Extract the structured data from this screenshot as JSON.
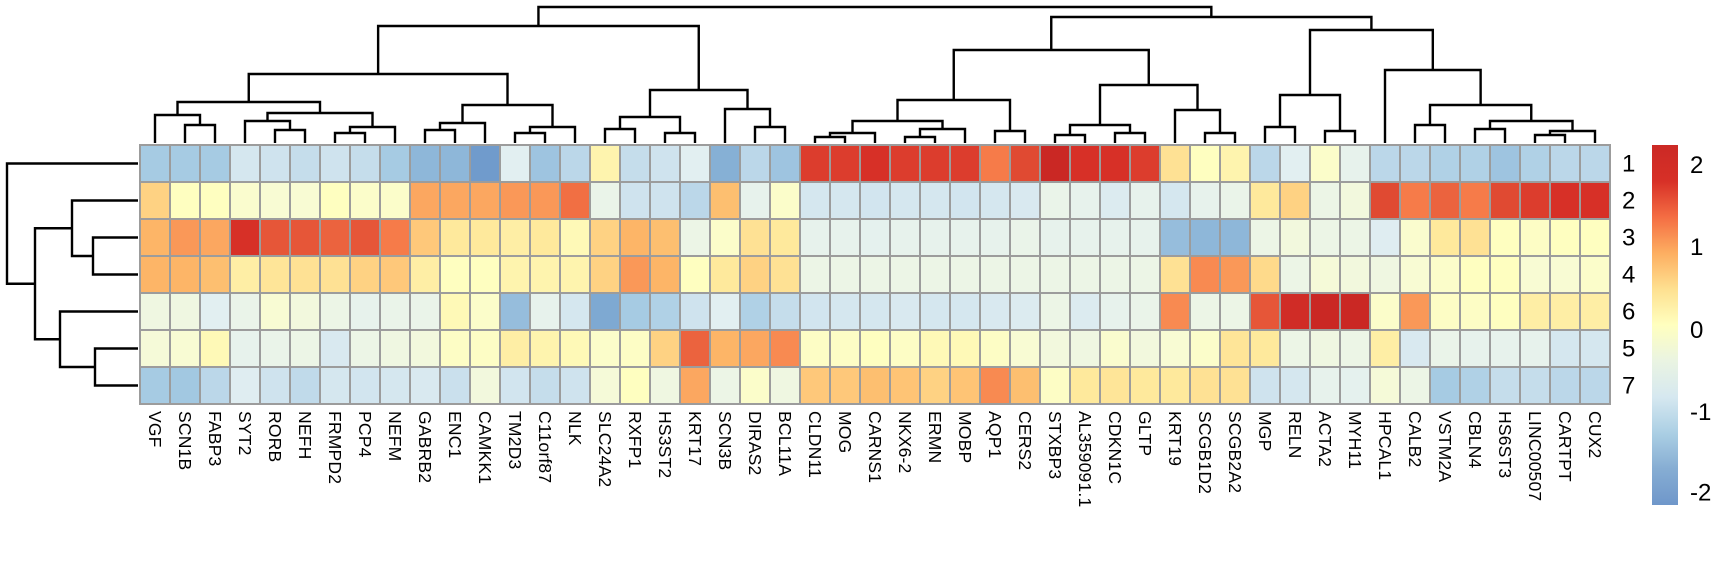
{
  "chart_data": {
    "type": "heatmap",
    "title": "",
    "description": "Hierarchically clustered gene-expression heatmap (z-scores), 7 cluster rows by 49 genes, with row and column dendrograms and a color key",
    "columns": [
      "VGF",
      "SCN1B",
      "FABP3",
      "SYT2",
      "RORB",
      "NEFH",
      "FRMPD2",
      "PCP4",
      "NEFM",
      "GABRB2",
      "ENC1",
      "CAMKK1",
      "TM2D3",
      "C11orf87",
      "NLK",
      "SLC24A2",
      "RXFP1",
      "HS3ST2",
      "KRT17",
      "SCN3B",
      "DIRAS2",
      "BCL11A",
      "CLDN11",
      "MOG",
      "CARNS1",
      "NKX6-2",
      "ERMN",
      "MOBP",
      "AQP1",
      "CERS2",
      "STXBP3",
      "AL359091.1",
      "CDKN1C",
      "GLTP",
      "KRT19",
      "SCGB1D2",
      "SCGB2A2",
      "MGP",
      "RELN",
      "ACTA2",
      "MYH11",
      "HPCAL1",
      "CALB2",
      "VSTM2A",
      "CBLN4",
      "HS6ST3",
      "LINC00507",
      "CARTPT",
      "CUX2"
    ],
    "rows": [
      "1",
      "2",
      "3",
      "4",
      "6",
      "5",
      "7"
    ],
    "values": [
      [
        -1.0,
        -1.0,
        -1.0,
        -0.5,
        -0.6,
        -0.7,
        -0.6,
        -0.7,
        -1.0,
        -1.3,
        -1.3,
        -1.7,
        -0.3,
        -1.1,
        -0.8,
        0.4,
        -0.7,
        -0.6,
        -0.3,
        -1.4,
        -0.8,
        -1.1,
        2.0,
        2.0,
        2.1,
        2.0,
        2.0,
        2.0,
        1.5,
        1.9,
        2.3,
        2.1,
        2.1,
        2.0,
        0.6,
        0.3,
        0.4,
        -0.8,
        -0.3,
        0.2,
        -0.2,
        -0.8,
        -0.8,
        -0.9,
        -0.9,
        -1.1,
        -0.9,
        -0.8,
        -0.8
      ],
      [
        0.8,
        0.3,
        0.3,
        0.15,
        0.1,
        0.1,
        0.3,
        0.2,
        0.2,
        1.2,
        1.2,
        1.2,
        1.3,
        1.3,
        1.6,
        -0.15,
        -0.6,
        -0.6,
        -0.8,
        1.0,
        -0.2,
        0.2,
        -0.5,
        -0.5,
        -0.55,
        -0.5,
        -0.5,
        -0.55,
        -0.5,
        -0.45,
        -0.15,
        -0.2,
        -0.4,
        -0.2,
        -0.5,
        -0.2,
        -0.15,
        0.5,
        0.8,
        -0.1,
        0.0,
        1.9,
        1.5,
        1.7,
        1.5,
        1.9,
        2.0,
        2.1,
        2.1
      ],
      [
        1.1,
        1.3,
        1.2,
        2.1,
        1.8,
        1.8,
        1.7,
        1.8,
        1.5,
        0.9,
        0.5,
        0.5,
        0.45,
        0.5,
        0.35,
        0.8,
        1.1,
        1.0,
        -0.1,
        0.2,
        0.6,
        0.5,
        -0.2,
        -0.2,
        -0.25,
        -0.2,
        -0.2,
        -0.2,
        -0.2,
        -0.15,
        -0.2,
        -0.2,
        -0.2,
        -0.2,
        -1.2,
        -1.3,
        -1.3,
        -0.1,
        0.0,
        -0.1,
        -0.1,
        -0.35,
        0.15,
        0.5,
        0.6,
        0.3,
        0.25,
        0.3,
        0.3
      ],
      [
        1.1,
        1.1,
        1.0,
        0.45,
        0.55,
        0.6,
        0.6,
        0.8,
        0.9,
        0.45,
        0.3,
        0.3,
        0.4,
        0.4,
        0.4,
        0.8,
        1.3,
        1.1,
        0.3,
        0.5,
        0.8,
        0.6,
        -0.1,
        -0.1,
        -0.1,
        -0.1,
        -0.1,
        -0.1,
        -0.1,
        -0.1,
        -0.1,
        -0.1,
        -0.1,
        -0.1,
        0.6,
        1.4,
        1.3,
        0.7,
        -0.1,
        0.05,
        0.0,
        -0.05,
        0.1,
        0.2,
        0.3,
        0.3,
        0.1,
        0.1,
        0.2
      ],
      [
        -0.05,
        -0.05,
        -0.3,
        -0.15,
        0.1,
        0.0,
        -0.1,
        -0.2,
        -0.15,
        -0.15,
        0.35,
        0.2,
        -1.2,
        -0.2,
        -0.5,
        -1.5,
        -1.0,
        -0.9,
        -0.6,
        -0.3,
        -0.9,
        -0.7,
        -0.55,
        -0.5,
        -0.5,
        -0.45,
        -0.5,
        -0.5,
        -0.45,
        -0.4,
        -0.1,
        -0.4,
        -0.2,
        -0.15,
        1.4,
        -0.1,
        -0.1,
        1.8,
        2.2,
        2.3,
        2.3,
        0.2,
        1.3,
        0.25,
        0.25,
        0.3,
        0.45,
        0.45,
        0.45
      ],
      [
        0.05,
        0.1,
        0.35,
        -0.2,
        -0.15,
        -0.1,
        -0.45,
        -0.1,
        -0.05,
        0.0,
        0.25,
        0.25,
        0.45,
        0.4,
        0.35,
        0.2,
        0.25,
        0.8,
        1.7,
        1.1,
        1.2,
        1.4,
        0.25,
        0.25,
        0.3,
        0.25,
        0.35,
        0.35,
        0.25,
        0.1,
        0.0,
        -0.05,
        0.15,
        0.0,
        0.1,
        0.2,
        0.55,
        0.5,
        -0.1,
        -0.05,
        -0.1,
        0.45,
        -0.45,
        -0.15,
        -0.2,
        -0.2,
        -0.2,
        -0.5,
        -0.5
      ],
      [
        -1.0,
        -1.05,
        -0.8,
        -0.35,
        -0.6,
        -0.75,
        -0.5,
        -0.55,
        -0.5,
        -0.45,
        -0.65,
        0.0,
        -0.55,
        -0.7,
        -0.6,
        0.05,
        0.3,
        -0.05,
        1.2,
        -0.1,
        0.2,
        -0.05,
        0.9,
        0.9,
        1.0,
        0.95,
        0.8,
        0.95,
        1.4,
        1.0,
        0.25,
        0.5,
        0.55,
        0.5,
        0.5,
        0.6,
        0.6,
        -0.6,
        -0.5,
        -0.2,
        -0.25,
        0.05,
        -0.1,
        -1.0,
        -0.9,
        -0.7,
        -0.7,
        -0.8,
        -0.8
      ]
    ],
    "value_range": [
      -2.1,
      2.35
    ],
    "grid": true,
    "cell_border_color": "#9c9c9c",
    "dendrogram_color": "#000000",
    "color_stops": [
      [
        -2.4,
        "#4575b4"
      ],
      [
        -2.0,
        "#5a87c3"
      ],
      [
        -1.5,
        "#7ea9d2"
      ],
      [
        -1.0,
        "#a6cbe3"
      ],
      [
        -0.6,
        "#cfe3ee"
      ],
      [
        -0.3,
        "#e2eff1"
      ],
      [
        -0.1,
        "#ecf5e6"
      ],
      [
        0.1,
        "#f8fbd3"
      ],
      [
        0.3,
        "#fefec0"
      ],
      [
        0.5,
        "#fee99c"
      ],
      [
        0.8,
        "#fed283"
      ],
      [
        1.1,
        "#fdb567"
      ],
      [
        1.5,
        "#f67b49"
      ],
      [
        1.9,
        "#e04a32"
      ],
      [
        2.1,
        "#d73027"
      ],
      [
        2.4,
        "#c32423"
      ]
    ],
    "col_dendrogram": [
      [
        [
          [
            [
              [
                0,
                [
                  1,
                  2,
                  20
                ],
                30
              ],
              [
                [
                  3,
                  [
                    4,
                    5,
                    15
                  ],
                  24
                ],
                [
                  [
                    6,
                    7,
                    12
                  ],
                  8,
                  18
                ],
                32
              ],
              43
            ],
            [
              [
                [
                  9,
                  10,
                  15
                ],
                11,
                22
              ],
              [
                [
                  12,
                  13,
                  12
                ],
                14,
                18
              ],
              40
            ],
            71
          ],
          [
            [
              [
                15,
                16,
                16
              ],
              [
                17,
                18,
                12
              ],
              28
            ],
            [
              19,
              [
                20,
                21,
                18
              ],
              36
            ],
            55
          ],
          119
        ],
        [
          [
            [
              [
                [
                  [
                    22,
                    23,
                    8
                  ],
                  24,
                  12
                ],
                [
                  [
                    25,
                    26,
                    8
                  ],
                  27,
                  16
                ],
                24
              ],
              [
                28,
                29,
                14
              ],
              45
            ],
            [
              [
                [
                  30,
                  31,
                  10
                ],
                [
                  32,
                  33,
                  12
                ],
                20
              ],
              [
                34,
                [
                  35,
                  36,
                  12
                ],
                35
              ],
              60
            ],
            95
          ],
          [
            [
              [
                37,
                38,
                18
              ],
              [
                39,
                40,
                14
              ],
              50
            ],
            [
              41,
              [
                [
                  42,
                  43,
                  20
                ],
                [
                  [
                    44,
                    45,
                    16
                  ],
                  [
                    [
                      46,
                      47,
                      10
                    ],
                    48,
                    14
                  ],
                  24
                ],
                40
              ],
              75
            ],
            115
          ],
          128
        ],
        138
      ]
    ],
    "row_dendrogram": [
      [
        0,
        [
          [
            1,
            [
              2,
              3,
              47
            ],
            68
          ],
          [
            4,
            [
              5,
              6,
              45
            ],
            80
          ],
          105
        ],
        133
      ]
    ],
    "legend_position": "right"
  },
  "legend": {
    "gradient_top_to_bottom": [
      "#cb2925",
      "#d73027",
      "#f46d43",
      "#fdae61",
      "#fee090",
      "#ffffbf",
      "#eaf4e2",
      "#d6e8f0",
      "#abcfe4",
      "#86add3",
      "#6f97ca"
    ],
    "ticks": [
      {
        "label": "2",
        "f": 0.056
      },
      {
        "label": "1",
        "f": 0.283
      },
      {
        "label": "0",
        "f": 0.514
      },
      {
        "label": "-1",
        "f": 0.742
      },
      {
        "label": "-2",
        "f": 0.965
      }
    ]
  }
}
